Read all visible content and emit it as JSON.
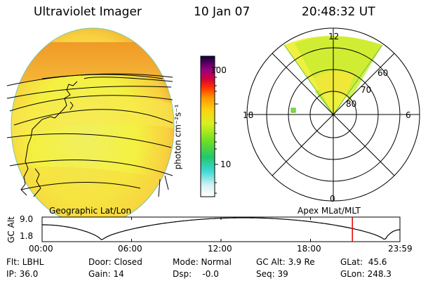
{
  "header": {
    "title": "Ultraviolet Imager",
    "date": "10 Jan 07",
    "time": "20:48:32 UT"
  },
  "colorbar": {
    "unit_label": "photon cm⁻²s⁻¹",
    "tick_100": "100",
    "tick_10": "10"
  },
  "left_panel": {
    "caption": "Geographic Lat/Lon"
  },
  "polar_plot": {
    "caption": "Apex MLat/MLT",
    "mlt_labels": {
      "top": "12",
      "left": "18",
      "right": "6",
      "bottom": "0"
    },
    "lat_labels": [
      "60",
      "70",
      "80"
    ]
  },
  "altitude_plot": {
    "ylabel": "GC Alt",
    "y_top": "9.0",
    "y_bottom": "1.8",
    "x_ticks": [
      "00:00",
      "06:00",
      "12:00",
      "18:00",
      "23:59"
    ],
    "current_time_marker_hours": 20.81,
    "marker_color": "#e00000"
  },
  "info": {
    "flt": "Flt: LBHL",
    "ip": "IP: 36.0",
    "door": "Door: Closed",
    "gain": "Gain: 14",
    "mode": "Mode: Normal",
    "dsp": "Dsp:    -0.0",
    "gcalt": "GC Alt: 3.9 Re",
    "seq": "Seq: 39",
    "glat": "GLat:  45.6",
    "glon": "GLon: 248.3"
  }
}
